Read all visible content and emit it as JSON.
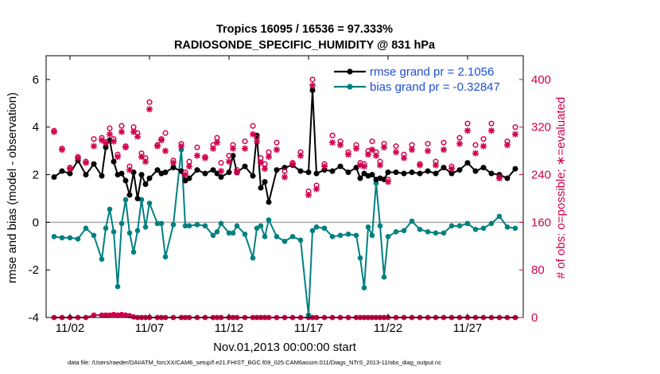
{
  "chart_data": {
    "type": "line",
    "title": "Tropics 16095 / 16536 = 97.333%",
    "subtitle": "RADIOSONDE_SPECIFIC_HUMIDITY @ 831 hPa",
    "xlabel": "Nov.01,2013 00:00:00 start",
    "ylabel": "rmse and bias (model - observation)",
    "ylabel_right": "# of obs: o=possible; ∗=evaluated",
    "footnote": "data file: /Users/raeder/DAI/ATM_forcXX/CAM6_setup/f.e21.FHIST_BGC.f09_025.CAM6assim.011/Diags_NTrS_2013-11/obs_diag_output.nc",
    "xlim": [
      0.5,
      30.5
    ],
    "ylim": [
      -4,
      7
    ],
    "ylim_right": [
      0,
      440
    ],
    "x_ticks": [
      2,
      7,
      12,
      17,
      22,
      27
    ],
    "x_tick_labels": [
      "11/02",
      "11/07",
      "11/12",
      "11/17",
      "11/22",
      "11/27"
    ],
    "y_ticks": [
      -4,
      -2,
      0,
      2,
      4,
      6
    ],
    "y_tick_labels": [
      "-4",
      "-2",
      "0",
      "2",
      "4",
      "6"
    ],
    "y_ticks_right": [
      0,
      80,
      160,
      240,
      320,
      400
    ],
    "y_tick_labels_right": [
      "0",
      "80",
      "160",
      "240",
      "320",
      "400"
    ],
    "zero_line": 0,
    "x": [
      1.0,
      1.5,
      2.0,
      2.5,
      3.0,
      3.5,
      4.0,
      4.25,
      4.5,
      4.75,
      5.0,
      5.25,
      5.5,
      5.75,
      6.0,
      6.25,
      6.5,
      6.75,
      7.0,
      7.5,
      7.75,
      8.0,
      8.5,
      9.0,
      9.25,
      9.5,
      10.0,
      10.5,
      11.0,
      11.25,
      11.5,
      12.0,
      12.25,
      12.5,
      13.0,
      13.5,
      13.75,
      14.0,
      14.25,
      14.5,
      15.0,
      15.5,
      16.0,
      16.5,
      17.0,
      17.25,
      17.5,
      18.0,
      18.5,
      19.0,
      19.5,
      20.0,
      20.25,
      20.5,
      20.75,
      21.0,
      21.25,
      21.5,
      21.75,
      22.0,
      22.5,
      23.0,
      23.5,
      24.0,
      24.5,
      25.0,
      25.5,
      26.0,
      26.5,
      27.0,
      27.5,
      28.0,
      28.5,
      29.0,
      29.5,
      30.0
    ],
    "series": [
      {
        "name": "rmse",
        "legend": "rmse grand pr = 2.1056",
        "color": "#000000",
        "axis": "left",
        "values": [
          1.9,
          2.15,
          2.05,
          2.6,
          2.0,
          2.45,
          1.95,
          3.15,
          3.45,
          2.55,
          2.0,
          2.05,
          1.75,
          1.15,
          2.1,
          1.0,
          2.0,
          1.6,
          1.85,
          2.2,
          2.05,
          2.1,
          2.3,
          2.15,
          1.75,
          1.85,
          2.2,
          2.05,
          2.2,
          2.05,
          1.9,
          2.1,
          2.8,
          2.1,
          2.35,
          1.95,
          3.65,
          1.45,
          1.7,
          0.85,
          2.2,
          2.3,
          2.4,
          2.15,
          2.1,
          5.55,
          2.05,
          2.2,
          2.15,
          2.35,
          2.1,
          2.3,
          1.85,
          2.05,
          1.95,
          2.0,
          1.8,
          1.85,
          1.8,
          2.1,
          2.1,
          2.05,
          2.1,
          2.05,
          2.15,
          2.05,
          2.3,
          2.05,
          2.2,
          2.5,
          2.15,
          2.3,
          2.05,
          2.0,
          1.85,
          2.25
        ]
      },
      {
        "name": "bias",
        "legend": "bias grand pr = -0.32847",
        "color": "#008080",
        "axis": "left",
        "values": [
          -0.6,
          -0.65,
          -0.65,
          -0.7,
          -0.25,
          -0.55,
          -1.55,
          -0.25,
          0.55,
          -0.4,
          -2.7,
          -0.05,
          0.95,
          -0.45,
          -1.25,
          -0.35,
          0.95,
          -0.2,
          0.8,
          -0.05,
          -0.05,
          -1.45,
          -0.1,
          3.05,
          -0.15,
          -0.15,
          -0.1,
          -0.15,
          -0.55,
          -0.4,
          -0.05,
          -0.45,
          -0.45,
          -0.15,
          -0.5,
          -1.5,
          -0.25,
          -0.15,
          -0.6,
          0.1,
          -0.6,
          -0.8,
          -0.6,
          -0.75,
          -3.9,
          -0.35,
          -0.2,
          -0.25,
          -0.6,
          -0.55,
          -0.5,
          -0.55,
          -1.5,
          -2.75,
          -0.2,
          -0.55,
          1.65,
          -0.15,
          -2.3,
          -0.6,
          -0.4,
          -0.35,
          0.05,
          -0.3,
          -0.4,
          -0.45,
          -0.45,
          -0.15,
          -0.15,
          -0.05,
          -0.3,
          -0.25,
          -0.05,
          0.25,
          -0.2,
          -0.25
        ]
      },
      {
        "name": "obs possible",
        "marker": "o",
        "color": "#d1004e",
        "axis": "right",
        "values": [
          314,
          284,
          252,
          270,
          262,
          300,
          302,
          295,
          318,
          300,
          274,
          322,
          288,
          254,
          320,
          310,
          276,
          268,
          362,
          290,
          300,
          310,
          264,
          292,
          244,
          262,
          286,
          270,
          290,
          302,
          260,
          272,
          290,
          248,
          296,
          322,
          302,
          268,
          258,
          278,
          294,
          246,
          260,
          278,
          212,
          400,
          222,
          258,
          306,
          296,
          278,
          290,
          260,
          258,
          280,
          296,
          278,
          262,
          292,
          232,
          288,
          274,
          290,
          258,
          292,
          262,
          294,
          254,
          302,
          326,
          290,
          300,
          326,
          236,
          296,
          320
        ]
      },
      {
        "name": "obs evaluated",
        "marker": "*",
        "color": "#d1004e",
        "axis": "right",
        "values": [
          312,
          282,
          250,
          268,
          260,
          288,
          298,
          293,
          308,
          296,
          270,
          312,
          286,
          248,
          312,
          304,
          270,
          262,
          350,
          288,
          298,
          280,
          260,
          288,
          240,
          254,
          272,
          268,
          284,
          294,
          246,
          262,
          284,
          244,
          284,
          308,
          296,
          260,
          250,
          270,
          282,
          236,
          258,
          272,
          206,
          390,
          216,
          254,
          294,
          290,
          274,
          284,
          256,
          254,
          274,
          282,
          272,
          256,
          286,
          228,
          278,
          268,
          282,
          256,
          280,
          256,
          282,
          250,
          292,
          314,
          276,
          288,
          314,
          234,
          290,
          308
        ]
      },
      {
        "name": "obs count line",
        "color": "#d1004e",
        "axis": "right",
        "values": [
          0,
          0,
          0,
          0,
          0,
          4,
          4,
          4,
          4,
          5,
          4,
          5,
          4,
          3,
          1,
          0,
          0,
          0,
          0,
          0,
          0,
          0,
          0,
          0,
          0,
          0,
          0,
          0,
          0,
          0,
          0,
          0,
          0,
          0,
          0,
          0,
          0,
          0,
          0,
          0,
          0,
          0,
          0,
          0,
          0,
          0,
          0,
          0,
          0,
          0,
          0,
          0,
          0,
          0,
          0,
          0,
          0,
          0,
          0,
          0,
          0,
          0,
          0,
          0,
          0,
          0,
          0,
          0,
          0,
          0,
          0,
          0,
          0,
          0,
          0,
          0
        ]
      }
    ],
    "colors": {
      "rmse": "#000000",
      "bias": "#008080",
      "obs": "#d1004e",
      "zero": "#aaaaaa",
      "legend_text": "#1f4fd6",
      "axis": "#000000"
    }
  }
}
